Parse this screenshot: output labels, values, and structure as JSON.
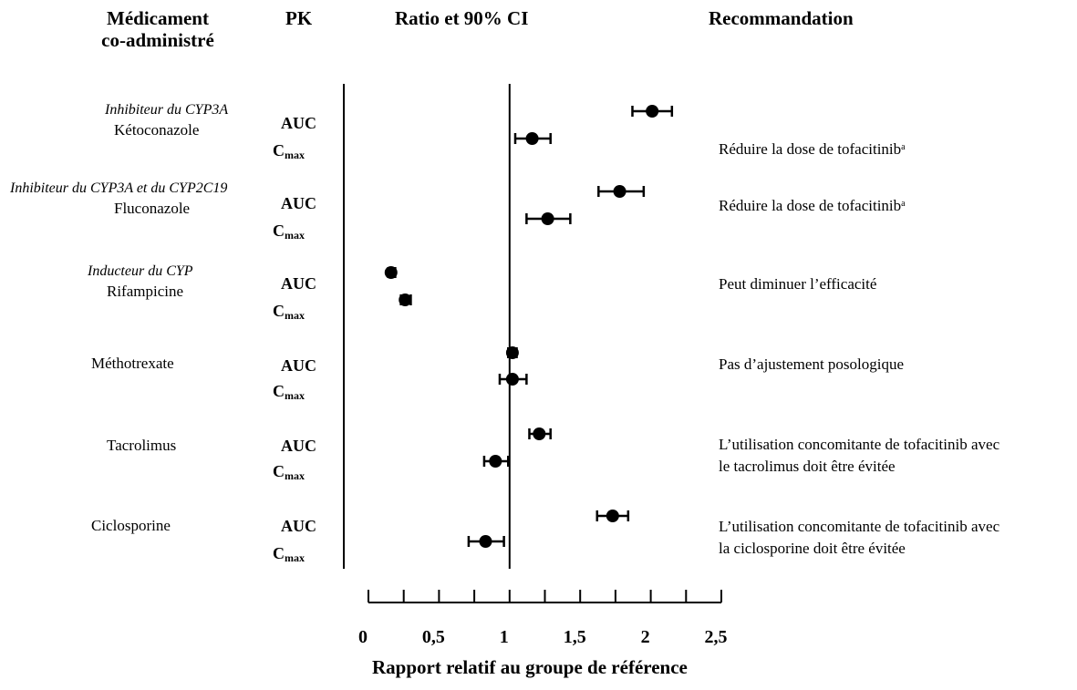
{
  "headers": {
    "drug_line1": "Médicament",
    "drug_line2": "co-administré",
    "pk": "PK",
    "ratio": "Ratio et 90% CI",
    "recommendation": "Recommandation"
  },
  "rows": [
    {
      "group": "Inhibiteur du CYP3A",
      "drug": "Kétoconazole",
      "auc_label": "AUC",
      "cmax_label": "C",
      "cmax_sub": "max",
      "rec_line1": "Réduire la dose de tofacitinib",
      "rec_sup": "a",
      "rec_line2": ""
    },
    {
      "group": "Inhibiteur du CYP3A et du CYP2C19",
      "drug": "Fluconazole",
      "auc_label": "AUC",
      "cmax_label": "C",
      "cmax_sub": "max",
      "rec_line1": "Réduire la dose de tofacitinib",
      "rec_sup": "a",
      "rec_line2": ""
    },
    {
      "group": "Inducteur du CYP",
      "drug": "Rifampicine",
      "auc_label": "AUC",
      "cmax_label": "C",
      "cmax_sub": "max",
      "rec_line1": "Peut diminuer l’efficacité",
      "rec_sup": "",
      "rec_line2": ""
    },
    {
      "group": "",
      "drug": "Méthotrexate",
      "auc_label": "AUC",
      "cmax_label": "C",
      "cmax_sub": "max",
      "rec_line1": "Pas d’ajustement posologique",
      "rec_sup": "",
      "rec_line2": ""
    },
    {
      "group": "",
      "drug": "Tacrolimus",
      "auc_label": "AUC",
      "cmax_label": "C",
      "cmax_sub": "max",
      "rec_line1": "L’utilisation concomitante de tofacitinib avec",
      "rec_sup": "",
      "rec_line2": "le tacrolimus doit être évitée"
    },
    {
      "group": "",
      "drug": "Ciclosporine",
      "auc_label": "AUC",
      "cmax_label": "C",
      "cmax_sub": "max",
      "rec_line1": "L’utilisation concomitante de tofacitinib avec",
      "rec_sup": "",
      "rec_line2": "la ciclosporine doit être évitée"
    }
  ],
  "chart_data": {
    "type": "scatter",
    "xlabel": "Rapport relatif au groupe de référence",
    "xlim": [
      0,
      2.5
    ],
    "xticks": [
      0,
      0.5,
      1,
      1.5,
      2,
      2.5
    ],
    "xtick_labels": [
      "0",
      "0,5",
      "1",
      "1,5",
      "2",
      "2,5"
    ],
    "reference_line": 1,
    "points": [
      {
        "drug": "Kétoconazole",
        "pk": "AUC",
        "ratio": 2.01,
        "ci": [
          1.87,
          2.15
        ]
      },
      {
        "drug": "Kétoconazole",
        "pk": "Cmax",
        "ratio": 1.16,
        "ci": [
          1.04,
          1.29
        ]
      },
      {
        "drug": "Fluconazole",
        "pk": "AUC",
        "ratio": 1.78,
        "ci": [
          1.63,
          1.95
        ]
      },
      {
        "drug": "Fluconazole",
        "pk": "Cmax",
        "ratio": 1.27,
        "ci": [
          1.12,
          1.43
        ]
      },
      {
        "drug": "Rifampicine",
        "pk": "AUC",
        "ratio": 0.16,
        "ci": [
          0.14,
          0.19
        ]
      },
      {
        "drug": "Rifampicine",
        "pk": "Cmax",
        "ratio": 0.26,
        "ci": [
          0.23,
          0.3
        ]
      },
      {
        "drug": "Méthotrexate",
        "pk": "AUC",
        "ratio": 1.02,
        "ci": [
          0.99,
          1.05
        ]
      },
      {
        "drug": "Méthotrexate",
        "pk": "Cmax",
        "ratio": 1.02,
        "ci": [
          0.93,
          1.12
        ]
      },
      {
        "drug": "Tacrolimus",
        "pk": "AUC",
        "ratio": 1.21,
        "ci": [
          1.14,
          1.29
        ]
      },
      {
        "drug": "Tacrolimus",
        "pk": "Cmax",
        "ratio": 0.9,
        "ci": [
          0.82,
          0.99
        ]
      },
      {
        "drug": "Ciclosporine",
        "pk": "AUC",
        "ratio": 1.73,
        "ci": [
          1.62,
          1.84
        ]
      },
      {
        "drug": "Ciclosporine",
        "pk": "Cmax",
        "ratio": 0.83,
        "ci": [
          0.71,
          0.96
        ]
      }
    ]
  }
}
